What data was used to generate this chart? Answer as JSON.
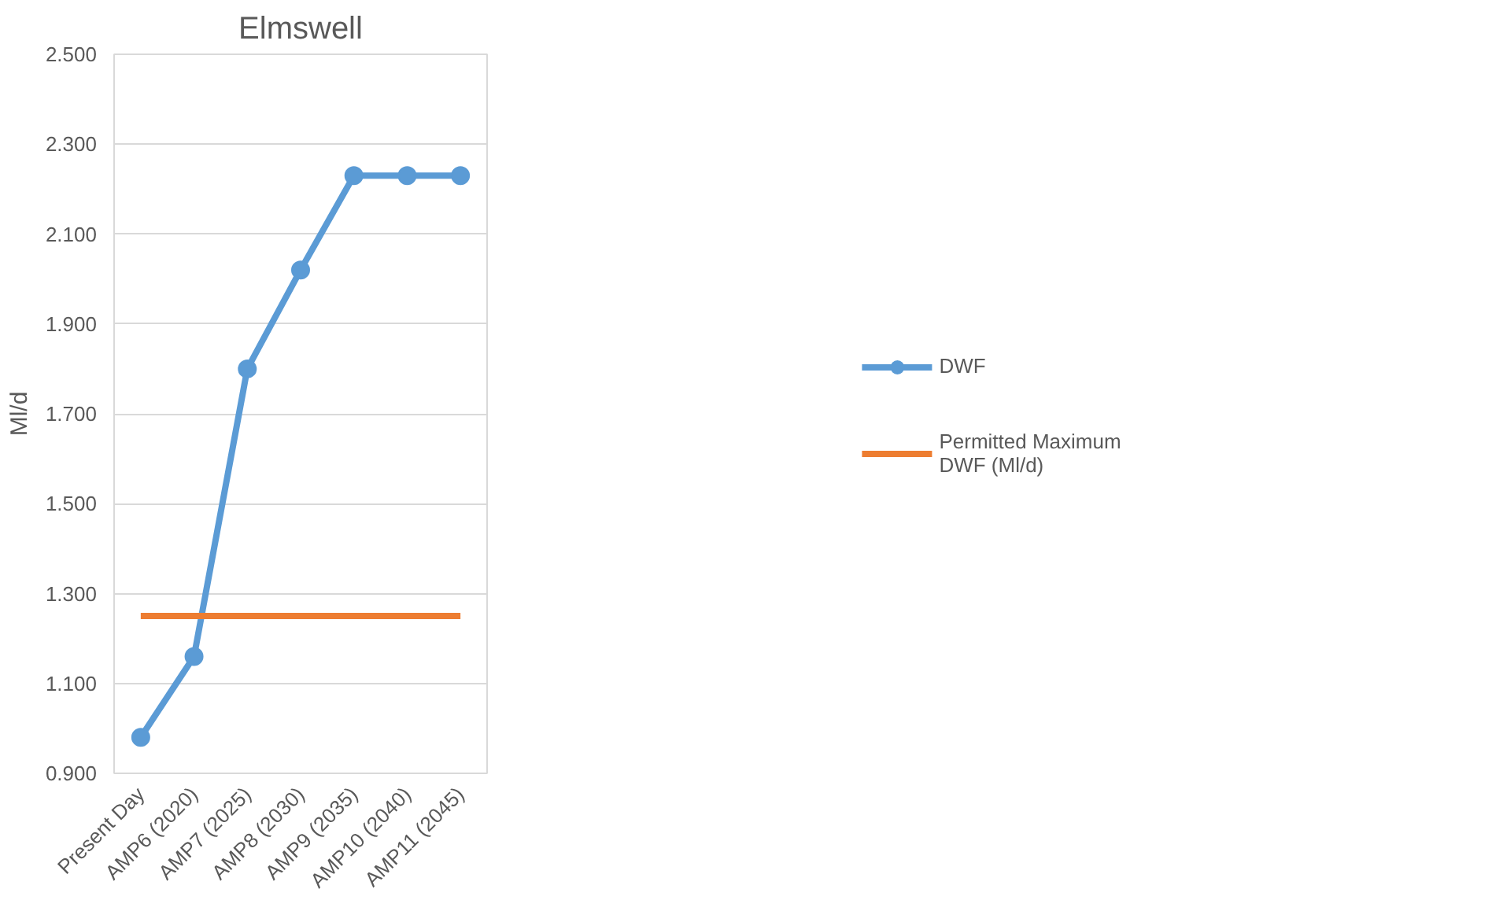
{
  "chart_data": {
    "type": "line",
    "title": "Elmswell",
    "ylabel": "Ml/d",
    "categories": [
      "Present Day",
      "AMP6 (2020)",
      "AMP7 (2025)",
      "AMP8 (2030)",
      "AMP9 (2035)",
      "AMP10 (2040)",
      "AMP11 (2045)"
    ],
    "series": [
      {
        "name": "DWF",
        "color": "#5b9bd5",
        "marker": "circle",
        "values": [
          0.98,
          1.16,
          1.8,
          2.02,
          2.23,
          2.23,
          2.23
        ]
      },
      {
        "name": "Permitted Maximum DWF (Ml/d)",
        "color": "#ed7d31",
        "marker": "none",
        "values": [
          1.25,
          1.25,
          1.25,
          1.25,
          1.25,
          1.25,
          1.25
        ]
      }
    ],
    "ylim": [
      0.9,
      2.5
    ],
    "yticks": [
      {
        "value": 0.9,
        "label": "0.900"
      },
      {
        "value": 1.1,
        "label": "1.100"
      },
      {
        "value": 1.3,
        "label": "1.300"
      },
      {
        "value": 1.5,
        "label": "1.500"
      },
      {
        "value": 1.7,
        "label": "1.700"
      },
      {
        "value": 1.9,
        "label": "1.900"
      },
      {
        "value": 2.1,
        "label": "2.100"
      },
      {
        "value": 2.3,
        "label": "2.300"
      },
      {
        "value": 2.5,
        "label": "2.500"
      }
    ],
    "grid": "y",
    "legend": "right",
    "line_style": "solid"
  }
}
